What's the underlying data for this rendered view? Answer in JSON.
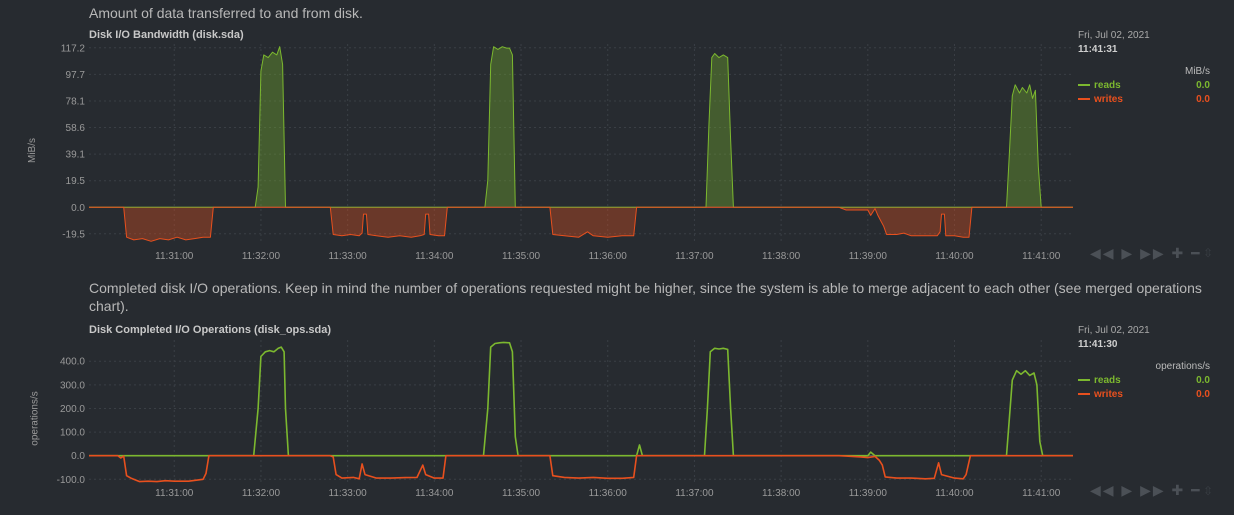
{
  "charts": [
    {
      "description": "Amount of data transferred to and from disk.",
      "title": "Disk I/O Bandwidth (disk.sda)",
      "ylabel": "MiB/s",
      "legend": {
        "date": "Fri, Jul 02, 2021",
        "time": "11:41:31",
        "units": "MiB/s",
        "items": [
          {
            "name": "reads",
            "value": "0.0"
          },
          {
            "name": "writes",
            "value": "0.0"
          }
        ]
      },
      "toolbar": "◀◀ ▶ ▶▶ ✚ ━",
      "resize": "⇳"
    },
    {
      "description": "Completed disk I/O operations. Keep in mind the number of operations requested might be higher, since the system is able to merge adjacent to each other (see merged operations chart).",
      "title": "Disk Completed I/O Operations (disk_ops.sda)",
      "ylabel": "operations/s",
      "legend": {
        "date": "Fri, Jul 02, 2021",
        "time": "11:41:30",
        "units": "operations/s",
        "items": [
          {
            "name": "reads",
            "value": "0.0"
          },
          {
            "name": "writes",
            "value": "0.0"
          }
        ]
      },
      "toolbar": "◀◀ ▶ ▶▶ ✚ ━",
      "resize": "⇳"
    }
  ],
  "colors": {
    "reads": "#7cb82f",
    "writes": "#e8501e",
    "grid": "#3a3f45",
    "axis_text": "#9a9a9a"
  },
  "chart_data": [
    {
      "type": "area",
      "title": "Disk I/O Bandwidth (disk.sda)",
      "ylabel": "MiB/s",
      "y_ticks": [
        "117.2",
        "97.7",
        "78.1",
        "58.6",
        "39.1",
        "19.5",
        "0.0",
        "-19.5"
      ],
      "y_tick_values": [
        117.2,
        97.7,
        78.1,
        58.6,
        39.1,
        19.5,
        0.0,
        -19.5
      ],
      "ylim": [
        -27,
        120
      ],
      "x_ticks": [
        "11:31:00",
        "11:32:00",
        "11:33:00",
        "11:34:00",
        "11:35:00",
        "11:36:00",
        "11:37:00",
        "11:38:00",
        "11:39:00",
        "11:40:00",
        "11:41:00"
      ],
      "x_tick_seconds": [
        60,
        120,
        180,
        240,
        300,
        360,
        420,
        480,
        540,
        600,
        660
      ],
      "x_range_seconds": [
        1,
        682
      ],
      "series": [
        {
          "name": "reads",
          "points": [
            [
              1,
              0
            ],
            [
              116,
              0
            ],
            [
              118,
              15
            ],
            [
              120,
              100
            ],
            [
              122,
              112
            ],
            [
              125,
              110
            ],
            [
              128,
              114
            ],
            [
              131,
              112
            ],
            [
              133,
              118
            ],
            [
              135,
              105
            ],
            [
              137,
              0
            ],
            [
              275,
              0
            ],
            [
              277,
              20
            ],
            [
              279,
              105
            ],
            [
              281,
              118
            ],
            [
              284,
              116
            ],
            [
              287,
              118
            ],
            [
              290,
              117
            ],
            [
              292,
              117
            ],
            [
              294,
              112
            ],
            [
              296,
              0
            ],
            [
              428,
              0
            ],
            [
              430,
              60
            ],
            [
              432,
              110
            ],
            [
              434,
              113
            ],
            [
              437,
              110
            ],
            [
              440,
              112
            ],
            [
              443,
              110
            ],
            [
              445,
              50
            ],
            [
              447,
              0
            ],
            [
              636,
              0
            ],
            [
              638,
              40
            ],
            [
              640,
              82
            ],
            [
              642,
              90
            ],
            [
              645,
              84
            ],
            [
              647,
              88
            ],
            [
              650,
              84
            ],
            [
              652,
              90
            ],
            [
              654,
              80
            ],
            [
              656,
              86
            ],
            [
              658,
              30
            ],
            [
              660,
              0
            ],
            [
              682,
              0
            ]
          ]
        },
        {
          "name": "writes",
          "points": [
            [
              1,
              0
            ],
            [
              25,
              0
            ],
            [
              27,
              -22
            ],
            [
              32,
              -24
            ],
            [
              38,
              -23
            ],
            [
              44,
              -25
            ],
            [
              50,
              -23
            ],
            [
              56,
              -24
            ],
            [
              62,
              -22
            ],
            [
              68,
              -24
            ],
            [
              74,
              -23
            ],
            [
              80,
              -22
            ],
            [
              85,
              -22
            ],
            [
              87,
              0
            ],
            [
              168,
              0
            ],
            [
              170,
              -20
            ],
            [
              176,
              -21
            ],
            [
              182,
              -20
            ],
            [
              188,
              -21
            ],
            [
              190,
              -19
            ],
            [
              191,
              -5
            ],
            [
              193,
              -5
            ],
            [
              194,
              -20
            ],
            [
              200,
              -21
            ],
            [
              208,
              -22
            ],
            [
              216,
              -21
            ],
            [
              224,
              -22
            ],
            [
              230,
              -21
            ],
            [
              233,
              -20
            ],
            [
              234,
              -5
            ],
            [
              236,
              -5
            ],
            [
              237,
              -20
            ],
            [
              243,
              -21
            ],
            [
              247,
              -21
            ],
            [
              249,
              0
            ],
            [
              320,
              0
            ],
            [
              322,
              -20
            ],
            [
              330,
              -21
            ],
            [
              340,
              -22
            ],
            [
              346,
              -18
            ],
            [
              350,
              -21
            ],
            [
              360,
              -22
            ],
            [
              370,
              -21
            ],
            [
              378,
              -21
            ],
            [
              380,
              0
            ],
            [
              520,
              0
            ],
            [
              525,
              -2
            ],
            [
              540,
              -2
            ],
            [
              542,
              -6
            ],
            [
              545,
              -1
            ],
            [
              547,
              -6
            ],
            [
              549,
              -10
            ],
            [
              551,
              -14
            ],
            [
              553,
              -20
            ],
            [
              560,
              -20
            ],
            [
              565,
              -19
            ],
            [
              570,
              -21
            ],
            [
              580,
              -21
            ],
            [
              588,
              -21
            ],
            [
              590,
              -18
            ],
            [
              591,
              -5
            ],
            [
              593,
              -5
            ],
            [
              594,
              -21
            ],
            [
              600,
              -21
            ],
            [
              606,
              -22
            ],
            [
              610,
              -22
            ],
            [
              612,
              0
            ],
            [
              682,
              0
            ]
          ]
        }
      ]
    },
    {
      "type": "line",
      "title": "Disk Completed I/O Operations (disk_ops.sda)",
      "ylabel": "operations/s",
      "y_ticks": [
        "400.0",
        "300.0",
        "200.0",
        "100.0",
        "0.0",
        "-100.0"
      ],
      "y_tick_values": [
        400,
        300,
        200,
        100,
        0,
        -100
      ],
      "ylim": [
        -120,
        490
      ],
      "x_ticks": [
        "11:31:00",
        "11:32:00",
        "11:33:00",
        "11:34:00",
        "11:35:00",
        "11:36:00",
        "11:37:00",
        "11:38:00",
        "11:39:00",
        "11:40:00",
        "11:41:00"
      ],
      "x_tick_seconds": [
        60,
        120,
        180,
        240,
        300,
        360,
        420,
        480,
        540,
        600,
        660
      ],
      "x_range_seconds": [
        1,
        682
      ],
      "series": [
        {
          "name": "reads",
          "points": [
            [
              1,
              0
            ],
            [
              115,
              0
            ],
            [
              118,
              200
            ],
            [
              120,
              420
            ],
            [
              123,
              440
            ],
            [
              126,
              445
            ],
            [
              129,
              440
            ],
            [
              132,
              455
            ],
            [
              134,
              460
            ],
            [
              136,
              440
            ],
            [
              137,
              200
            ],
            [
              139,
              0
            ],
            [
              274,
              0
            ],
            [
              277,
              200
            ],
            [
              279,
              460
            ],
            [
              282,
              475
            ],
            [
              285,
              478
            ],
            [
              288,
              480
            ],
            [
              292,
              478
            ],
            [
              294,
              440
            ],
            [
              296,
              80
            ],
            [
              298,
              0
            ],
            [
              380,
              0
            ],
            [
              382,
              45
            ],
            [
              384,
              0
            ],
            [
              427,
              0
            ],
            [
              429,
              200
            ],
            [
              431,
              440
            ],
            [
              434,
              455
            ],
            [
              437,
              452
            ],
            [
              440,
              455
            ],
            [
              443,
              450
            ],
            [
              445,
              200
            ],
            [
              447,
              0
            ],
            [
              540,
              0
            ],
            [
              542,
              15
            ],
            [
              545,
              0
            ],
            [
              636,
              0
            ],
            [
              638,
              160
            ],
            [
              640,
              320
            ],
            [
              643,
              360
            ],
            [
              646,
              345
            ],
            [
              649,
              360
            ],
            [
              652,
              340
            ],
            [
              655,
              350
            ],
            [
              657,
              300
            ],
            [
              659,
              60
            ],
            [
              661,
              0
            ],
            [
              682,
              0
            ]
          ]
        },
        {
          "name": "writes",
          "points": [
            [
              1,
              0
            ],
            [
              21,
              0
            ],
            [
              23,
              -10
            ],
            [
              25,
              -2
            ],
            [
              27,
              -85
            ],
            [
              30,
              -95
            ],
            [
              36,
              -110
            ],
            [
              42,
              -108
            ],
            [
              48,
              -110
            ],
            [
              54,
              -106
            ],
            [
              60,
              -108
            ],
            [
              70,
              -108
            ],
            [
              80,
              -100
            ],
            [
              82,
              -75
            ],
            [
              84,
              0
            ],
            [
              168,
              0
            ],
            [
              170,
              -5
            ],
            [
              172,
              -80
            ],
            [
              176,
              -95
            ],
            [
              184,
              -92
            ],
            [
              188,
              -98
            ],
            [
              190,
              -35
            ],
            [
              192,
              -80
            ],
            [
              200,
              -95
            ],
            [
              210,
              -95
            ],
            [
              220,
              -93
            ],
            [
              228,
              -92
            ],
            [
              232,
              -40
            ],
            [
              234,
              -80
            ],
            [
              240,
              -95
            ],
            [
              246,
              -95
            ],
            [
              248,
              0
            ],
            [
              320,
              0
            ],
            [
              322,
              -85
            ],
            [
              330,
              -92
            ],
            [
              340,
              -95
            ],
            [
              350,
              -92
            ],
            [
              360,
              -96
            ],
            [
              370,
              -96
            ],
            [
              378,
              -92
            ],
            [
              380,
              0
            ],
            [
              520,
              0
            ],
            [
              525,
              -2
            ],
            [
              535,
              -5
            ],
            [
              540,
              -8
            ],
            [
              545,
              -3
            ],
            [
              548,
              -20
            ],
            [
              550,
              -40
            ],
            [
              552,
              -90
            ],
            [
              560,
              -95
            ],
            [
              570,
              -95
            ],
            [
              580,
              -98
            ],
            [
              586,
              -96
            ],
            [
              589,
              -30
            ],
            [
              591,
              -80
            ],
            [
              600,
              -95
            ],
            [
              606,
              -98
            ],
            [
              608,
              -80
            ],
            [
              611,
              0
            ],
            [
              682,
              0
            ]
          ]
        }
      ]
    }
  ]
}
